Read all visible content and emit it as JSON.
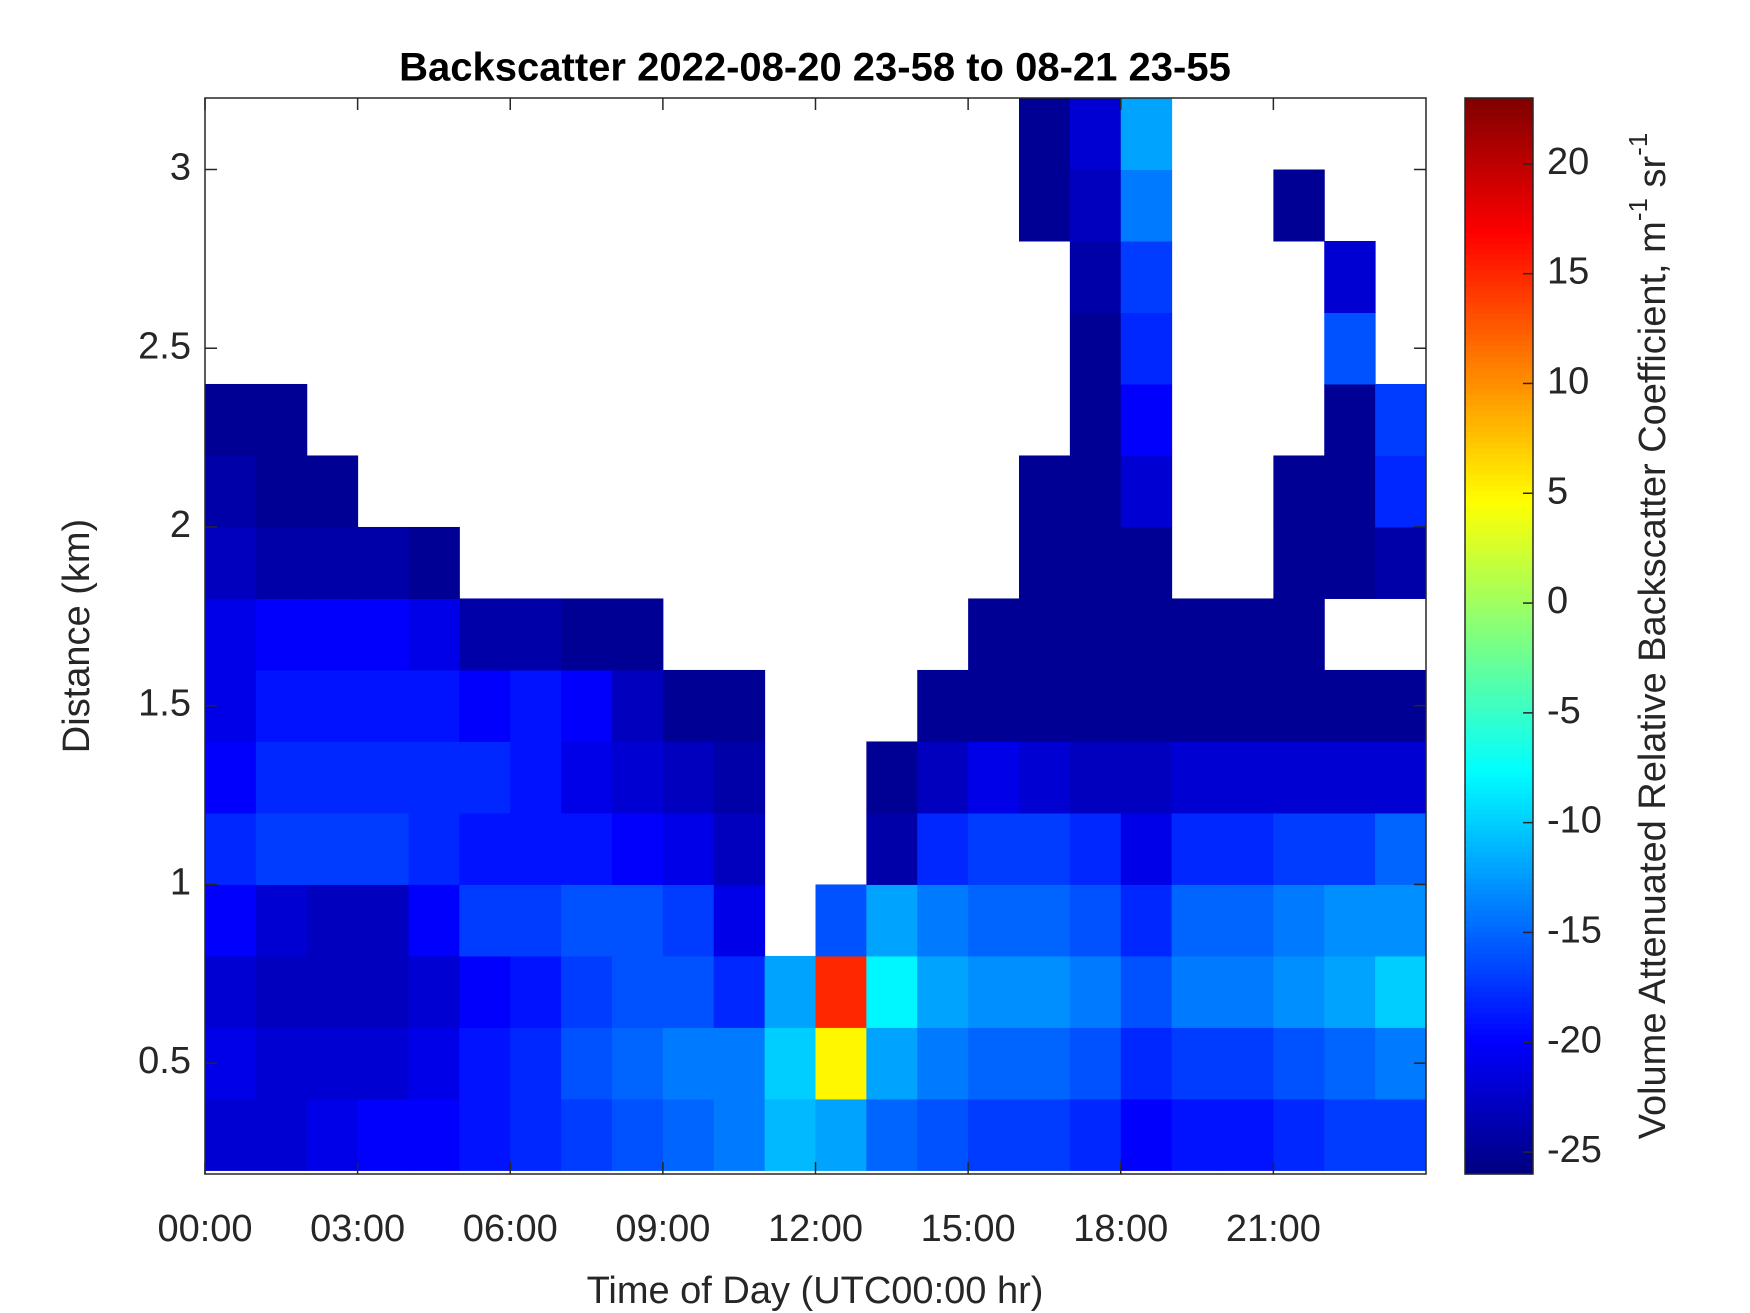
{
  "chart_data": {
    "type": "heatmap",
    "title": "Backscatter 2022-08-20 23-58 to 08-21 23-55",
    "x_label": "Time of Day (UTC00:00 hr)",
    "y_label": "Distance (km)",
    "colorbar_label": [
      "Volume Attenuated Relative Backscatter Coefficient, m",
      "-1",
      " sr",
      "-1"
    ],
    "colormap": "jet",
    "clim": [
      -26,
      23
    ],
    "cticks": [
      -25,
      -20,
      -15,
      -10,
      -5,
      0,
      5,
      10,
      15,
      20
    ],
    "xlim": [
      0,
      24
    ],
    "xticks": [
      {
        "value": 0,
        "label": "00:00"
      },
      {
        "value": 3,
        "label": "03:00"
      },
      {
        "value": 6,
        "label": "06:00"
      },
      {
        "value": 9,
        "label": "09:00"
      },
      {
        "value": 12,
        "label": "12:00"
      },
      {
        "value": 15,
        "label": "15:00"
      },
      {
        "value": 18,
        "label": "18:00"
      },
      {
        "value": 21,
        "label": "21:00"
      }
    ],
    "ylim": [
      0.19,
      3.2
    ],
    "yticks": [
      0.5,
      1,
      1.5,
      2,
      2.5,
      3
    ],
    "x": [
      0.5,
      1.5,
      2.5,
      3.5,
      4.5,
      5.5,
      6.5,
      7.5,
      8.5,
      9.5,
      10.5,
      11.5,
      12.5,
      13.5,
      14.5,
      15.5,
      16.5,
      17.5,
      18.5,
      19.5,
      20.5,
      21.5,
      22.5,
      23.5
    ],
    "y": [
      0.3,
      0.5,
      0.7,
      0.9,
      1.1,
      1.3,
      1.5,
      1.7,
      1.9,
      2.1,
      2.3,
      2.5,
      2.7,
      2.9,
      3.1
    ],
    "values": [
      [
        -22,
        -22,
        -21,
        -20,
        -20,
        -19,
        -18,
        -17,
        -16,
        -15,
        -14,
        -11,
        -12,
        -15,
        -16,
        -17,
        -17,
        -18,
        -20,
        -19,
        -19,
        -18,
        -17,
        -17
      ],
      [
        -21,
        -22,
        -22,
        -22,
        -21,
        -19,
        -18,
        -16,
        -15,
        -14,
        -14,
        -10,
        5,
        -12,
        -14,
        -15,
        -15,
        -16,
        -18,
        -17,
        -17,
        -16,
        -15,
        -14
      ],
      [
        -22,
        -23,
        -23,
        -23,
        -22,
        -20,
        -19,
        -17,
        -16,
        -16,
        -18,
        -12,
        15,
        -8,
        -12,
        -13,
        -13,
        -14,
        -16,
        -14,
        -14,
        -13,
        -12,
        -10
      ],
      [
        -20,
        -22,
        -23,
        -23,
        -20,
        -17,
        -17,
        -16,
        -16,
        -17,
        -21,
        null,
        -16,
        -12,
        -14,
        -15,
        -15,
        -16,
        -18,
        -15,
        -15,
        -14,
        -13,
        -13
      ],
      [
        -18,
        -17,
        -17,
        -17,
        -18,
        -19,
        -19,
        -19,
        -20,
        -21,
        -23,
        null,
        null,
        -24,
        -18,
        -17,
        -17,
        -18,
        -21,
        -18,
        -18,
        -17,
        -17,
        -15
      ],
      [
        -20,
        -18,
        -18,
        -18,
        -18,
        -18,
        -19,
        -21,
        -22,
        -23,
        -24,
        null,
        null,
        -25,
        -23,
        -21,
        -22,
        -23,
        -23,
        -22,
        -22,
        -22,
        -22,
        -22
      ],
      [
        -21,
        -19,
        -19,
        -19,
        -19,
        -20,
        -19,
        -20,
        -23,
        -25,
        -25,
        null,
        null,
        null,
        -25,
        -25,
        -25,
        -25,
        -25,
        -25,
        -25,
        -25,
        -25,
        -25
      ],
      [
        -21,
        -20,
        -20,
        -20,
        -21,
        -24,
        -24,
        -25,
        -25,
        null,
        null,
        null,
        null,
        null,
        null,
        -25,
        -25,
        -25,
        -25,
        -25,
        -25,
        -25,
        null,
        null
      ],
      [
        -23,
        -24,
        -24,
        -24,
        -25,
        null,
        null,
        null,
        null,
        null,
        null,
        null,
        null,
        null,
        null,
        null,
        -25,
        -25,
        -25,
        null,
        null,
        -25,
        -25,
        -24
      ],
      [
        -24,
        -25,
        -25,
        null,
        null,
        null,
        null,
        null,
        null,
        null,
        null,
        null,
        null,
        null,
        null,
        null,
        -25,
        -25,
        -22,
        null,
        null,
        -25,
        -25,
        -18
      ],
      [
        -25,
        -25,
        null,
        null,
        null,
        null,
        null,
        null,
        null,
        null,
        null,
        null,
        null,
        null,
        null,
        null,
        null,
        -25,
        -20,
        null,
        null,
        null,
        -25,
        -17
      ],
      [
        null,
        null,
        null,
        null,
        null,
        null,
        null,
        null,
        null,
        null,
        null,
        null,
        null,
        null,
        null,
        null,
        null,
        -25,
        -18,
        null,
        null,
        null,
        -16,
        null
      ],
      [
        null,
        null,
        null,
        null,
        null,
        null,
        null,
        null,
        null,
        null,
        null,
        null,
        null,
        null,
        null,
        null,
        null,
        -24,
        -17,
        null,
        null,
        null,
        -22,
        null
      ],
      [
        null,
        null,
        null,
        null,
        null,
        null,
        null,
        null,
        null,
        null,
        null,
        null,
        null,
        null,
        null,
        null,
        -25,
        -23,
        -14,
        null,
        null,
        -25,
        null,
        null
      ],
      [
        null,
        null,
        null,
        null,
        null,
        null,
        null,
        null,
        null,
        null,
        null,
        null,
        null,
        null,
        null,
        null,
        -25,
        -22,
        -12,
        null,
        null,
        null,
        null,
        null
      ]
    ]
  }
}
